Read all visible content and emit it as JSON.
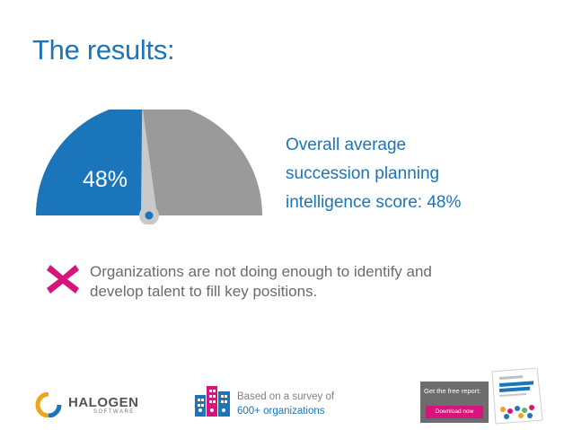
{
  "title": "The results:",
  "gauge": {
    "value_fraction": 0.48,
    "label": "48%",
    "fill_color": "#1b75bb",
    "rest_color": "#9a9a9a",
    "needle_color": "#c9c9c9",
    "hub_color": "#1b75bb"
  },
  "score": {
    "line1": "Overall average",
    "line2": "succession planning",
    "line3": "intelligence score: 48%"
  },
  "finding": {
    "icon": "x-mark-icon",
    "icon_color": "#d6157c",
    "line1": "Organizations are not doing enough to identify and",
    "line2": "develop talent to fill key positions."
  },
  "footer": {
    "logo_name": "HALOGEN",
    "logo_sub": "SOFTWARE",
    "survey_line1": "Based on a survey of",
    "survey_line2": "600+ organizations",
    "report_text": "Get the free report:",
    "download_label": "Download now",
    "accent_color": "#d6157c"
  }
}
